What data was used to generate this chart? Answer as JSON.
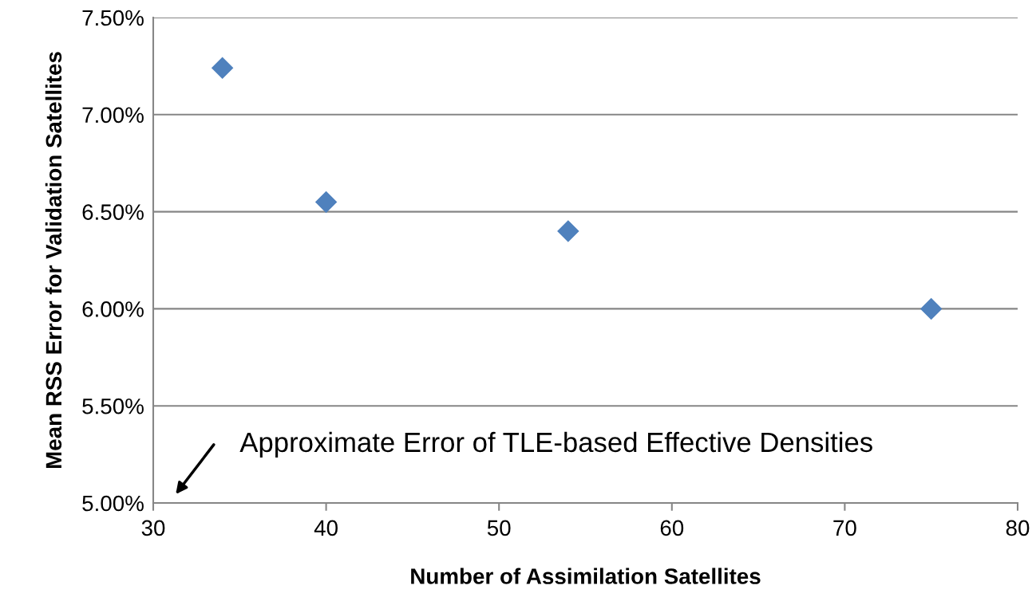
{
  "chart_data": {
    "type": "scatter",
    "xlabel": "Number of Assimilation Satellites",
    "ylabel": "Mean RSS Error for Validation Satellites",
    "x": [
      34,
      40,
      54,
      75
    ],
    "values": [
      7.24,
      6.55,
      6.4,
      6.0
    ],
    "color": "#4f81bd",
    "marker": "diamond",
    "xlim": [
      30,
      80
    ],
    "xticks": [
      30,
      40,
      50,
      60,
      70,
      80
    ],
    "ylim": [
      5.0,
      7.5
    ],
    "yticks": [
      {
        "value": 5.0,
        "label": "5.00%"
      },
      {
        "value": 5.5,
        "label": "5.50%"
      },
      {
        "value": 6.0,
        "label": "6.00%"
      },
      {
        "value": 6.5,
        "label": "6.50%"
      },
      {
        "value": 7.0,
        "label": "7.00%"
      },
      {
        "value": 7.5,
        "label": "7.50%"
      }
    ],
    "grid": "y",
    "annotations": [
      "Approximate Error of TLE-based Effective Densities"
    ]
  }
}
